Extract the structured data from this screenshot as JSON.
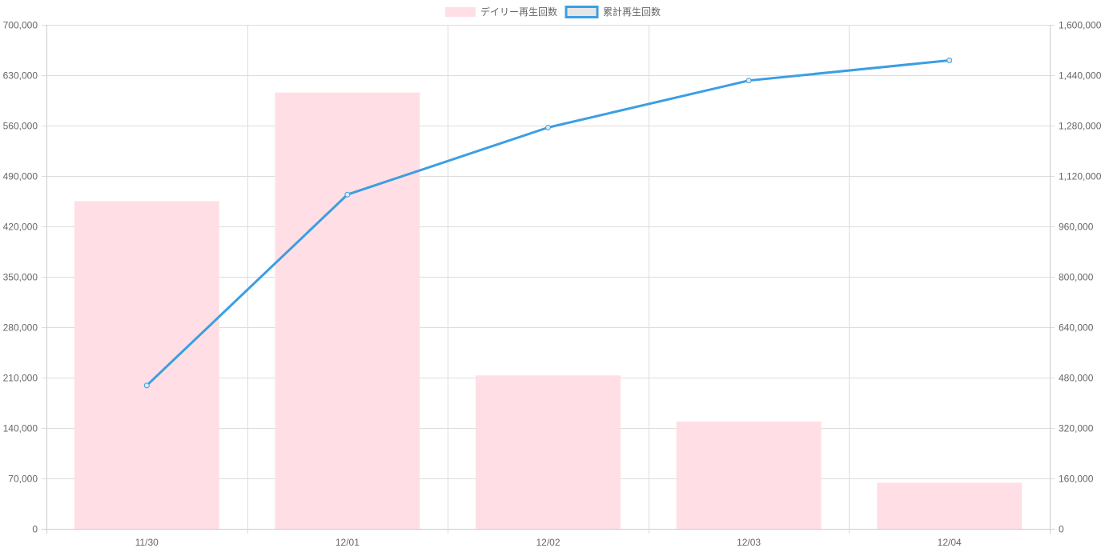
{
  "chart_data": {
    "type": "bar",
    "categories": [
      "11/30",
      "12/01",
      "12/02",
      "12/03",
      "12/04"
    ],
    "series": [
      {
        "name": "デイリー再生回数",
        "type": "bar",
        "axis": "left",
        "values": [
          455000,
          606000,
          213000,
          149000,
          64000
        ],
        "color": "#ffdfe5"
      },
      {
        "name": "累計再生回数",
        "type": "line",
        "axis": "right",
        "values": [
          455000,
          1061000,
          1274000,
          1423000,
          1487000
        ],
        "color": "#3b9ee3",
        "legend_fill": "#e6e6e6"
      }
    ],
    "y_left": {
      "min": 0,
      "max": 700000,
      "step": 70000,
      "tick_labels": [
        "0",
        "70,000",
        "140,000",
        "210,000",
        "280,000",
        "350,000",
        "420,000",
        "490,000",
        "560,000",
        "630,000",
        "700,000"
      ]
    },
    "y_right": {
      "min": 0,
      "max": 1600000,
      "step": 160000,
      "tick_labels": [
        "0",
        "160,000",
        "320,000",
        "480,000",
        "640,000",
        "800,000",
        "960,000",
        "1,120,000",
        "1,280,000",
        "1,440,000",
        "1,600,000"
      ]
    },
    "grid": true,
    "legend_position": "top-center",
    "colors": {
      "grid": "#dddddd",
      "axis_line": "#cccccc",
      "tick_text": "#666666"
    }
  }
}
